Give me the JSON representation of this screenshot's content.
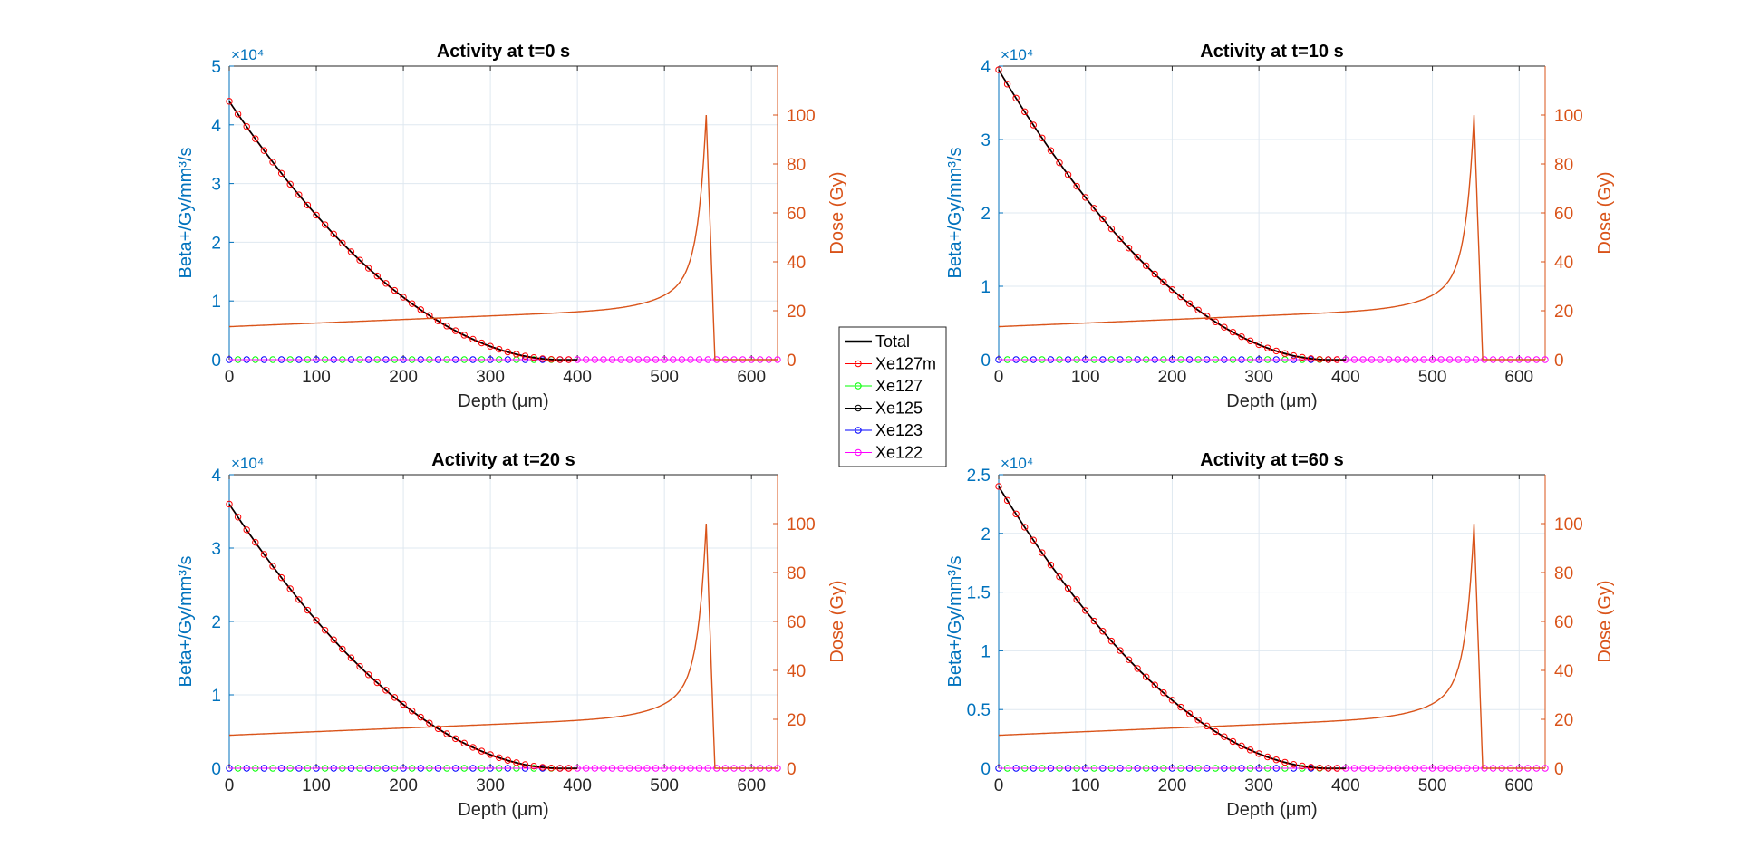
{
  "colors": {
    "left_axis": "#0072BD",
    "right_axis": "#D95319",
    "dose_line": "#D95319",
    "grid": "#dfe8f0",
    "axis": "#262626",
    "Total": "#000000",
    "Xe127m": "#ff0000",
    "Xe127": "#00ff00",
    "Xe125": "#000000",
    "Xe123": "#0000ff",
    "Xe122": "#ff00ff"
  },
  "legend": {
    "entries": [
      "Total",
      "Xe127m",
      "Xe127",
      "Xe125",
      "Xe123",
      "Xe122"
    ]
  },
  "chart_data": [
    {
      "type": "line",
      "title": "Activity at t=0 s",
      "xlabel": "Depth (μm)",
      "ylabel_left": "Beta+/Gy/mm³/s",
      "ylabel_right": "Dose (Gy)",
      "exponent_label": "×10⁴",
      "xlim": [
        0,
        630
      ],
      "ylim_left": [
        0,
        50000
      ],
      "ylim_right": [
        0,
        120
      ],
      "xticks": [
        0,
        100,
        200,
        300,
        400,
        500,
        600
      ],
      "yticks_left": [
        0,
        10000,
        20000,
        30000,
        40000,
        50000
      ],
      "yticklabels_left": [
        "0",
        "1",
        "2",
        "3",
        "4",
        "5"
      ],
      "yticks_right": [
        0,
        20,
        40,
        60,
        80,
        100
      ],
      "grid": true,
      "activity_peak": 44000,
      "activity_end_depth": 380,
      "dose_entrance": 13.5,
      "dose_peak": 100
    },
    {
      "type": "line",
      "title": "Activity at t=10 s",
      "xlabel": "Depth (μm)",
      "ylabel_left": "Beta+/Gy/mm³/s",
      "ylabel_right": "Dose (Gy)",
      "exponent_label": "×10⁴",
      "xlim": [
        0,
        630
      ],
      "ylim_left": [
        0,
        40000
      ],
      "ylim_right": [
        0,
        120
      ],
      "xticks": [
        0,
        100,
        200,
        300,
        400,
        500,
        600
      ],
      "yticks_left": [
        0,
        10000,
        20000,
        30000,
        40000
      ],
      "yticklabels_left": [
        "0",
        "1",
        "2",
        "3",
        "4"
      ],
      "yticks_right": [
        0,
        20,
        40,
        60,
        80,
        100
      ],
      "grid": true,
      "activity_peak": 39500,
      "activity_end_depth": 380,
      "dose_entrance": 13.5,
      "dose_peak": 100
    },
    {
      "type": "line",
      "title": "Activity at t=20 s",
      "xlabel": "Depth (μm)",
      "ylabel_left": "Beta+/Gy/mm³/s",
      "ylabel_right": "Dose (Gy)",
      "exponent_label": "×10⁴",
      "xlim": [
        0,
        630
      ],
      "ylim_left": [
        0,
        40000
      ],
      "ylim_right": [
        0,
        120
      ],
      "xticks": [
        0,
        100,
        200,
        300,
        400,
        500,
        600
      ],
      "yticks_left": [
        0,
        10000,
        20000,
        30000,
        40000
      ],
      "yticklabels_left": [
        "0",
        "1",
        "2",
        "3",
        "4"
      ],
      "yticks_right": [
        0,
        20,
        40,
        60,
        80,
        100
      ],
      "grid": true,
      "activity_peak": 36000,
      "activity_end_depth": 380,
      "dose_entrance": 13.5,
      "dose_peak": 100
    },
    {
      "type": "line",
      "title": "Activity at t=60 s",
      "xlabel": "Depth (μm)",
      "ylabel_left": "Beta+/Gy/mm³/s",
      "ylabel_right": "Dose (Gy)",
      "exponent_label": "×10⁴",
      "xlim": [
        0,
        630
      ],
      "ylim_left": [
        0,
        25000
      ],
      "ylim_right": [
        0,
        120
      ],
      "xticks": [
        0,
        100,
        200,
        300,
        400,
        500,
        600
      ],
      "yticks_left": [
        0,
        5000,
        10000,
        15000,
        20000,
        25000
      ],
      "yticklabels_left": [
        "0",
        "0.5",
        "1",
        "1.5",
        "2",
        "2.5"
      ],
      "yticks_right": [
        0,
        20,
        40,
        60,
        80,
        100
      ],
      "grid": true,
      "activity_peak": 24000,
      "activity_end_depth": 380,
      "dose_entrance": 13.5,
      "dose_peak": 100
    }
  ]
}
